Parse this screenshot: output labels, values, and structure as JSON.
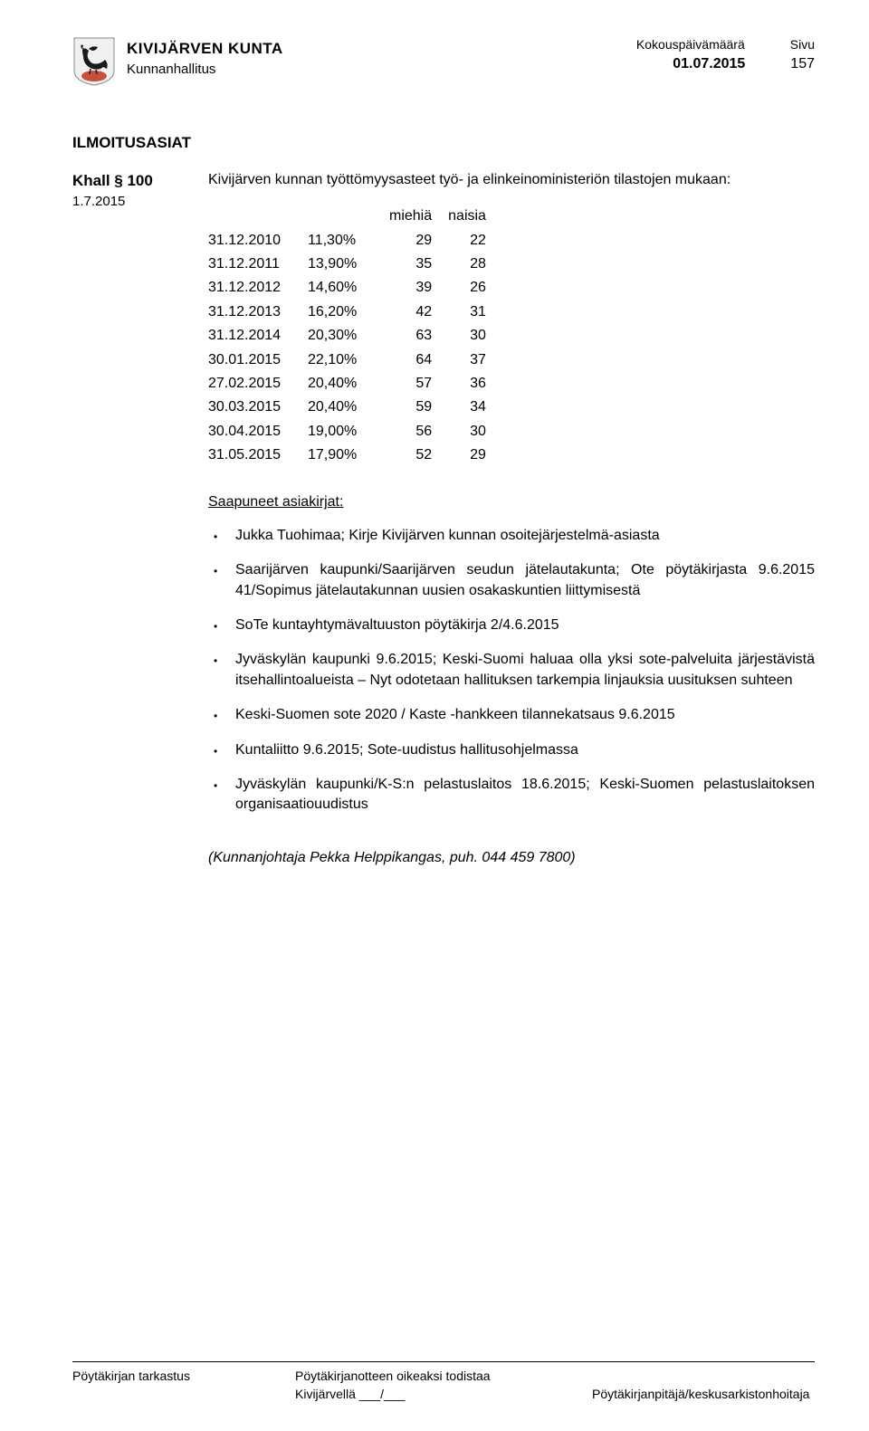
{
  "header": {
    "org_name": "KIVIJÄRVEN KUNTA",
    "org_sub": "Kunnanhallitus",
    "date_label": "Kokouspäivämäärä",
    "page_label": "Sivu",
    "date": "01.07.2015",
    "page": "157"
  },
  "logo": {
    "body_color": "#c94f3b",
    "bird_color": "#1a1a1a"
  },
  "section_title": "ILMOITUSASIAT",
  "khall": {
    "ref": "Khall § 100",
    "date": "1.7.2015"
  },
  "intro": "Kivijärven kunnan työttömyysasteet työ- ja elinkeinoministeriön tilastojen mukaan:",
  "stats": {
    "col_miehia": "miehiä",
    "col_naisia": "naisia",
    "rows": [
      {
        "date": "31.12.2010",
        "pct": "11,30%",
        "m": "29",
        "n": "22"
      },
      {
        "date": "31.12.2011",
        "pct": "13,90%",
        "m": "35",
        "n": "28"
      },
      {
        "date": "31.12.2012",
        "pct": "14,60%",
        "m": "39",
        "n": "26"
      },
      {
        "date": "31.12.2013",
        "pct": "16,20%",
        "m": "42",
        "n": "31"
      },
      {
        "date": "31.12.2014",
        "pct": "20,30%",
        "m": "63",
        "n": "30"
      },
      {
        "date": "30.01.2015",
        "pct": "22,10%",
        "m": "64",
        "n": "37"
      },
      {
        "date": "27.02.2015",
        "pct": "20,40%",
        "m": "57",
        "n": "36"
      },
      {
        "date": "30.03.2015",
        "pct": "20,40%",
        "m": "59",
        "n": "34"
      },
      {
        "date": "30.04.2015",
        "pct": "19,00%",
        "m": "56",
        "n": "30"
      },
      {
        "date": "31.05.2015",
        "pct": "17,90%",
        "m": "52",
        "n": "29"
      }
    ]
  },
  "saapuneet_title": "Saapuneet asiakirjat:",
  "bullets": [
    "Jukka Tuohimaa; Kirje Kivijärven kunnan osoitejärjestelmä-asiasta",
    "Saarijärven kaupunki/Saarijärven seudun jätelautakunta; Ote pöytäkirjasta 9.6.2015 41/Sopimus jätelautakunnan uusien osakaskuntien liittymisestä",
    "SoTe kuntayhtymävaltuuston pöytäkirja 2/4.6.2015",
    "Jyväskylän kaupunki 9.6.2015; Keski-Suomi haluaa olla yksi sote-palveluita järjestävistä itsehallintoalueista – Nyt odotetaan hallituksen tarkempia linjauksia uusituksen suhteen",
    "Keski-Suomen sote 2020 / Kaste -hankkeen tilannekatsaus 9.6.2015",
    "Kuntaliitto 9.6.2015; Sote-uudistus hallitusohjelmassa",
    "Jyväskylän kaupunki/K-S:n pelastuslaitos 18.6.2015; Keski-Suomen pelastuslaitoksen organisaatiouudistus"
  ],
  "kjoht": "(Kunnanjohtaja Pekka Helppikangas, puh. 044  459 7800)",
  "footer": {
    "left": "Pöytäkirjan tarkastus",
    "mid_line1": "Pöytäkirjanotteen oikeaksi todistaa",
    "mid_line2": "Kivijärvellä ___/___",
    "right": "Pöytäkirjanpitäjä/keskusarkistonhoitaja"
  }
}
